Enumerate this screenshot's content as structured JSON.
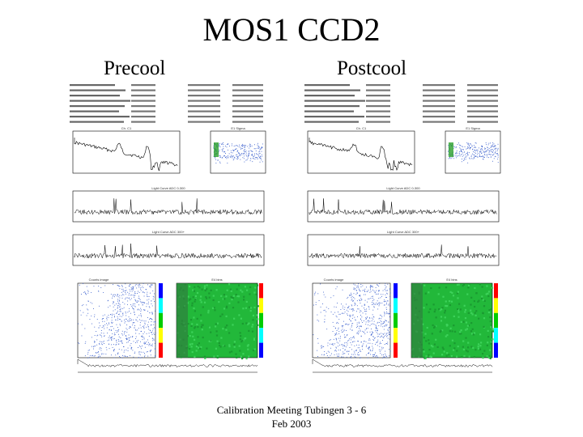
{
  "slide": {
    "title": "MOS1 CCD2",
    "footer_line1": "Calibration Meeting Tubingen 3 - 6",
    "footer_line2": "Feb 2003"
  },
  "panels": [
    {
      "label": "Precool",
      "spectrum_title": "Ch. C1",
      "scatter_title": "E1 Sigma",
      "lc1_title": "Light Curve ADC 0-300",
      "lc2_title": "Light Curve ADC 300+",
      "image_title": "Counts image",
      "edu_title": "E4 bins"
    },
    {
      "label": "Postcool",
      "spectrum_title": "Ch. C1",
      "scatter_title": "E1 Sigma",
      "lc1_title": "Light Curve ADC 0-300",
      "lc2_title": "Light Curve ADC 300+",
      "image_title": "Counts image",
      "edu_title": "E4 bins"
    }
  ],
  "colors": {
    "background": "#ffffff",
    "trace": "#000000",
    "scatter_points": "#3a5fcd",
    "map_green": "#22b83a",
    "colorbar": [
      "#ff0000",
      "#ffff00",
      "#00cc00",
      "#00ffff",
      "#0000ff"
    ]
  }
}
